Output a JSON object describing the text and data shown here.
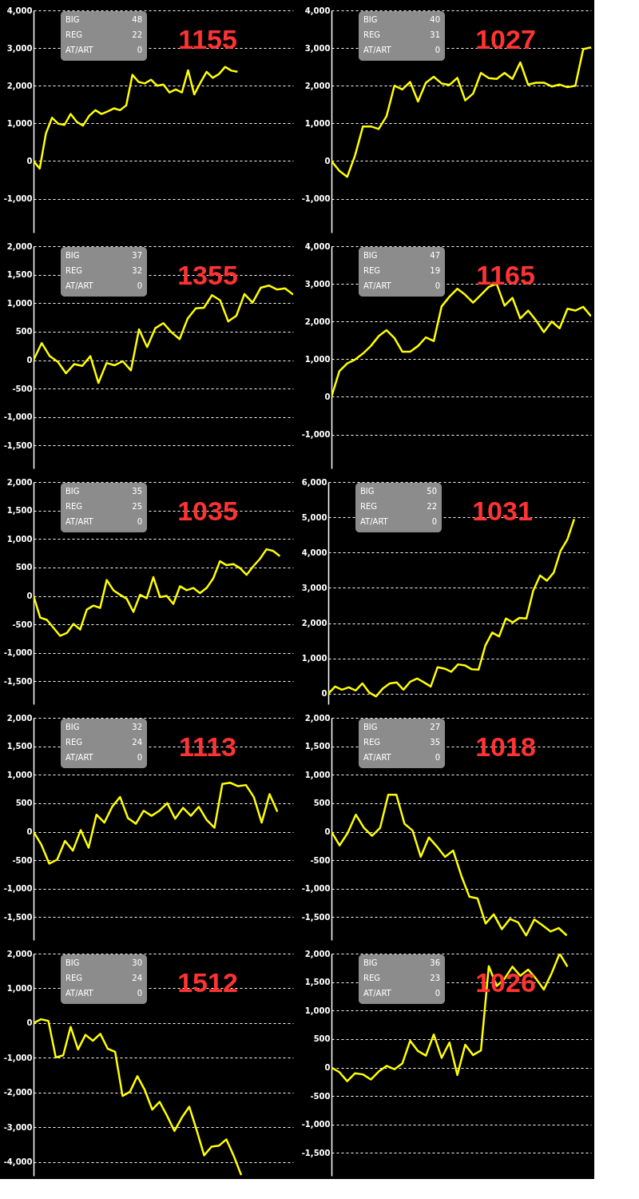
{
  "chart_data": [
    {
      "type": "line",
      "title": "1155",
      "annotations": [
        "BIG",
        "48",
        "REG",
        "22",
        "AT/ART",
        "0"
      ],
      "grid": "y",
      "tick_labels": "y",
      "line_style": "solid",
      "marker": "none",
      "categories": [
        null,
        null,
        null,
        null,
        null,
        null,
        null,
        null,
        null,
        null,
        null,
        null,
        null,
        null,
        null,
        null,
        null,
        null,
        null,
        null,
        null,
        null,
        null,
        null,
        null,
        null,
        null,
        null,
        null,
        null,
        null,
        null,
        null,
        null,
        null,
        null,
        null,
        null,
        null,
        null,
        null,
        null,
        null
      ],
      "ylim": [
        -1900,
        4000
      ],
      "yticks": [
        {
          "value": -1000,
          "label": "-1,000"
        },
        {
          "value": 0,
          "label": "0"
        },
        {
          "value": 1000,
          "label": "1,000"
        },
        {
          "value": 2000,
          "label": "2,000"
        },
        {
          "value": 3000,
          "label": "3,000"
        },
        {
          "value": 4000,
          "label": "4,000"
        }
      ],
      "series": [
        {
          "color": "#ffff00",
          "values": [
            0,
            -200,
            730,
            1150,
            990,
            960,
            1250,
            1040,
            940,
            1200,
            1350,
            1250,
            1320,
            1400,
            1350,
            1480,
            2290,
            2100,
            2060,
            2160,
            2000,
            2030,
            1820,
            1900,
            1820,
            2410,
            1770,
            2080,
            2370,
            2210,
            2310,
            2500,
            2400,
            2370,
            null,
            null,
            null,
            null,
            null,
            null,
            null,
            null,
            null
          ]
        }
      ]
    },
    {
      "type": "line",
      "title": "1027",
      "annotations": [
        "BIG",
        "40",
        "REG",
        "31",
        "AT/ART",
        "0"
      ],
      "grid": "y",
      "tick_labels": "y",
      "line_style": "solid",
      "marker": "none",
      "categories": [
        null,
        null,
        null,
        null,
        null,
        null,
        null,
        null,
        null,
        null,
        null,
        null,
        null,
        null,
        null,
        null,
        null,
        null,
        null,
        null,
        null,
        null,
        null,
        null,
        null,
        null,
        null,
        null,
        null,
        null,
        null,
        null,
        null,
        null
      ],
      "ylim": [
        -1900,
        4000
      ],
      "yticks": [
        {
          "value": -1000,
          "label": "-1,000"
        },
        {
          "value": 0,
          "label": "0"
        },
        {
          "value": 1000,
          "label": "1,000"
        },
        {
          "value": 2000,
          "label": "2,000"
        },
        {
          "value": 3000,
          "label": "3,000"
        },
        {
          "value": 4000,
          "label": "4,000"
        }
      ],
      "series": [
        {
          "color": "#ffff00",
          "values": [
            0,
            -260,
            -420,
            150,
            920,
            920,
            850,
            1190,
            2000,
            1900,
            2100,
            1580,
            2080,
            2240,
            2060,
            2020,
            2210,
            1610,
            1790,
            2340,
            2200,
            2180,
            2340,
            2180,
            2620,
            2030,
            2080,
            2080,
            1980,
            2030,
            1960,
            2000,
            2970,
            3020
          ]
        }
      ]
    },
    {
      "type": "line",
      "title": "1355",
      "annotations": [
        "BIG",
        "37",
        "REG",
        "32",
        "AT/ART",
        "0"
      ],
      "grid": "y",
      "tick_labels": "y",
      "line_style": "solid",
      "marker": "none",
      "categories": [
        null,
        null,
        null,
        null,
        null,
        null,
        null,
        null,
        null,
        null,
        null,
        null,
        null,
        null,
        null,
        null,
        null,
        null,
        null,
        null,
        null,
        null,
        null,
        null,
        null,
        null,
        null,
        null,
        null,
        null,
        null,
        null,
        null
      ],
      "ylim": [
        -1900,
        2000
      ],
      "yticks": [
        {
          "value": -1500,
          "label": "-1,500"
        },
        {
          "value": -1000,
          "label": "-1,000"
        },
        {
          "value": -500,
          "label": "-500"
        },
        {
          "value": 0,
          "label": "0"
        },
        {
          "value": 500,
          "label": "500"
        },
        {
          "value": 1000,
          "label": "1,000"
        },
        {
          "value": 1500,
          "label": "1,500"
        },
        {
          "value": 2000,
          "label": "2,000"
        }
      ],
      "series": [
        {
          "color": "#ffff00",
          "values": [
            0,
            300,
            70,
            -30,
            -230,
            -70,
            -100,
            70,
            -400,
            -50,
            -90,
            -20,
            -180,
            540,
            230,
            560,
            650,
            490,
            370,
            730,
            910,
            920,
            1140,
            1050,
            680,
            780,
            1160,
            1010,
            1270,
            1310,
            1240,
            1260,
            1150
          ]
        }
      ]
    },
    {
      "type": "line",
      "title": "1165",
      "annotations": [
        "BIG",
        "47",
        "REG",
        "19",
        "AT/ART",
        "0"
      ],
      "grid": "y",
      "tick_labels": "y",
      "line_style": "solid",
      "marker": "none",
      "categories": [
        null,
        null,
        null,
        null,
        null,
        null,
        null,
        null,
        null,
        null,
        null,
        null,
        null,
        null,
        null,
        null,
        null,
        null,
        null,
        null,
        null,
        null,
        null,
        null,
        null,
        null,
        null,
        null,
        null,
        null,
        null,
        null,
        null,
        null
      ],
      "ylim": [
        -1900,
        4000
      ],
      "yticks": [
        {
          "value": -1000,
          "label": "-1,000"
        },
        {
          "value": 0,
          "label": "0"
        },
        {
          "value": 1000,
          "label": "1,000"
        },
        {
          "value": 2000,
          "label": "2,000"
        },
        {
          "value": 3000,
          "label": "3,000"
        },
        {
          "value": 4000,
          "label": "4,000"
        }
      ],
      "series": [
        {
          "color": "#ffff00",
          "values": [
            0,
            680,
            890,
            990,
            1150,
            1350,
            1610,
            1770,
            1560,
            1200,
            1200,
            1350,
            1580,
            1480,
            2400,
            2660,
            2870,
            2710,
            2500,
            2710,
            2920,
            3000,
            2420,
            2630,
            2080,
            2290,
            2030,
            1720,
            2000,
            1820,
            2340,
            2290,
            2390,
            2140
          ]
        }
      ]
    },
    {
      "type": "line",
      "title": "1035",
      "annotations": [
        "BIG",
        "35",
        "REG",
        "25",
        "AT/ART",
        "0"
      ],
      "grid": "y",
      "tick_labels": "y",
      "line_style": "solid",
      "marker": "none",
      "categories": [
        null,
        null,
        null,
        null,
        null,
        null,
        null,
        null,
        null,
        null,
        null,
        null,
        null,
        null,
        null,
        null,
        null,
        null,
        null,
        null,
        null,
        null,
        null,
        null,
        null,
        null,
        null,
        null,
        null,
        null,
        null,
        null,
        null,
        null,
        null,
        null,
        null,
        null,
        null,
        null
      ],
      "ylim": [
        -1900,
        2000
      ],
      "yticks": [
        {
          "value": -1500,
          "label": "-1,500"
        },
        {
          "value": -1000,
          "label": "-1,000"
        },
        {
          "value": -500,
          "label": "-500"
        },
        {
          "value": 0,
          "label": "0"
        },
        {
          "value": 500,
          "label": "500"
        },
        {
          "value": 1000,
          "label": "1,000"
        },
        {
          "value": 1500,
          "label": "1,500"
        },
        {
          "value": 2000,
          "label": "2,000"
        }
      ],
      "series": [
        {
          "color": "#ffff00",
          "values": [
            0,
            -380,
            -420,
            -560,
            -700,
            -650,
            -490,
            -590,
            -240,
            -170,
            -210,
            280,
            100,
            20,
            -50,
            -280,
            20,
            -40,
            330,
            -20,
            0,
            -140,
            170,
            100,
            140,
            50,
            140,
            310,
            610,
            540,
            560,
            490,
            370,
            520,
            650,
            820,
            790,
            700,
            null,
            null
          ]
        }
      ]
    },
    {
      "type": "line",
      "title": "1031",
      "annotations": [
        "BIG",
        "50",
        "REG",
        "22",
        "AT/ART",
        "0"
      ],
      "grid": "y",
      "tick_labels": "y",
      "line_style": "solid",
      "marker": "none",
      "categories": [
        null,
        null,
        null,
        null,
        null,
        null,
        null,
        null,
        null,
        null,
        null,
        null,
        null,
        null,
        null,
        null,
        null,
        null,
        null,
        null,
        null,
        null,
        null,
        null,
        null,
        null,
        null,
        null,
        null,
        null,
        null,
        null,
        null,
        null,
        null,
        null,
        null,
        null,
        null
      ],
      "ylim": [
        -300,
        6000
      ],
      "yticks": [
        {
          "value": 0,
          "label": "0"
        },
        {
          "value": 1000,
          "label": "1,000"
        },
        {
          "value": 2000,
          "label": "2,000"
        },
        {
          "value": 3000,
          "label": "3,000"
        },
        {
          "value": 4000,
          "label": "4,000"
        },
        {
          "value": 5000,
          "label": "5,000"
        },
        {
          "value": 6000,
          "label": "6,000"
        }
      ],
      "series": [
        {
          "color": "#ffff00",
          "values": [
            0,
            200,
            110,
            180,
            90,
            290,
            30,
            -80,
            150,
            290,
            320,
            110,
            340,
            430,
            320,
            200,
            750,
            710,
            620,
            830,
            800,
            690,
            680,
            1370,
            1730,
            1620,
            2130,
            2020,
            2150,
            2130,
            2920,
            3350,
            3200,
            3430,
            4050,
            4370,
            4950,
            null,
            null
          ]
        }
      ]
    },
    {
      "type": "line",
      "title": "1113",
      "annotations": [
        "BIG",
        "32",
        "REG",
        "24",
        "AT/ART",
        "0"
      ],
      "grid": "y",
      "tick_labels": "y",
      "line_style": "solid",
      "marker": "none",
      "categories": [
        null,
        null,
        null,
        null,
        null,
        null,
        null,
        null,
        null,
        null,
        null,
        null,
        null,
        null,
        null,
        null,
        null,
        null,
        null,
        null,
        null,
        null,
        null,
        null,
        null,
        null,
        null,
        null,
        null,
        null,
        null,
        null,
        null,
        null
      ],
      "ylim": [
        -1900,
        2000
      ],
      "yticks": [
        {
          "value": -1500,
          "label": "-1,500"
        },
        {
          "value": -1000,
          "label": "-1,000"
        },
        {
          "value": -500,
          "label": "-500"
        },
        {
          "value": 0,
          "label": "0"
        },
        {
          "value": 500,
          "label": "500"
        },
        {
          "value": 1000,
          "label": "1,000"
        },
        {
          "value": 1500,
          "label": "1,500"
        },
        {
          "value": 2000,
          "label": "2,000"
        }
      ],
      "series": [
        {
          "color": "#ffff00",
          "values": [
            0,
            -230,
            -560,
            -490,
            -160,
            -330,
            30,
            -280,
            300,
            160,
            440,
            610,
            240,
            140,
            370,
            280,
            370,
            500,
            230,
            420,
            280,
            440,
            210,
            70,
            840,
            860,
            800,
            820,
            610,
            160,
            660,
            350,
            null,
            null
          ]
        }
      ]
    },
    {
      "type": "line",
      "title": "1018",
      "annotations": [
        "BIG",
        "27",
        "REG",
        "35",
        "AT/ART",
        "0"
      ],
      "grid": "y",
      "tick_labels": "y",
      "line_style": "solid",
      "marker": "none",
      "categories": [
        null,
        null,
        null,
        null,
        null,
        null,
        null,
        null,
        null,
        null,
        null,
        null,
        null,
        null,
        null,
        null,
        null,
        null,
        null,
        null,
        null,
        null,
        null,
        null,
        null,
        null,
        null,
        null,
        null,
        null,
        null,
        null,
        null
      ],
      "ylim": [
        -1900,
        2000
      ],
      "yticks": [
        {
          "value": -1500,
          "label": "-1,500"
        },
        {
          "value": -1000,
          "label": "-1,000"
        },
        {
          "value": -500,
          "label": "-500"
        },
        {
          "value": 0,
          "label": "0"
        },
        {
          "value": 500,
          "label": "500"
        },
        {
          "value": 1000,
          "label": "1,000"
        },
        {
          "value": 1500,
          "label": "1,500"
        },
        {
          "value": 2000,
          "label": "2,000"
        }
      ],
      "series": [
        {
          "color": "#ffff00",
          "values": [
            0,
            -240,
            -20,
            300,
            70,
            -70,
            70,
            650,
            650,
            140,
            20,
            -440,
            -100,
            -260,
            -440,
            -330,
            -770,
            -1140,
            -1170,
            -1610,
            -1450,
            -1710,
            -1530,
            -1590,
            -1820,
            -1540,
            -1640,
            -1750,
            -1690,
            -1820,
            null,
            null,
            null
          ]
        }
      ]
    },
    {
      "type": "line",
      "title": "1512",
      "annotations": [
        "BIG",
        "30",
        "REG",
        "24",
        "AT/ART",
        "0"
      ],
      "grid": "y",
      "tick_labels": "y",
      "line_style": "solid",
      "marker": "none",
      "categories": [
        null,
        null,
        null,
        null,
        null,
        null,
        null,
        null,
        null,
        null,
        null,
        null,
        null,
        null,
        null,
        null,
        null,
        null,
        null,
        null,
        null,
        null,
        null,
        null,
        null,
        null,
        null,
        null,
        null,
        null,
        null,
        null,
        null,
        null,
        null,
        null
      ],
      "ylim": [
        -4400,
        2000
      ],
      "yticks": [
        {
          "value": -4000,
          "label": "-4,000"
        },
        {
          "value": -3000,
          "label": "-3,000"
        },
        {
          "value": -2000,
          "label": "-2,000"
        },
        {
          "value": -1000,
          "label": "-1,000"
        },
        {
          "value": 0,
          "label": "0"
        },
        {
          "value": 1000,
          "label": "1,000"
        },
        {
          "value": 2000,
          "label": "2,000"
        }
      ],
      "series": [
        {
          "color": "#ffff00",
          "values": [
            0,
            110,
            60,
            -990,
            -930,
            -110,
            -760,
            -340,
            -510,
            -310,
            -740,
            -830,
            -2100,
            -1980,
            -1530,
            -1930,
            -2490,
            -2270,
            -2670,
            -3110,
            -2720,
            -2410,
            -3090,
            -3810,
            -3560,
            -3530,
            -3350,
            -3830,
            -4380,
            null,
            null,
            null,
            null,
            null,
            null,
            null
          ]
        }
      ]
    },
    {
      "type": "line",
      "title": "1026",
      "annotations": [
        "BIG",
        "36",
        "REG",
        "23",
        "AT/ART",
        "0"
      ],
      "grid": "y",
      "tick_labels": "y",
      "line_style": "solid",
      "marker": "none",
      "categories": [
        null,
        null,
        null,
        null,
        null,
        null,
        null,
        null,
        null,
        null,
        null,
        null,
        null,
        null,
        null,
        null,
        null,
        null,
        null,
        null,
        null,
        null,
        null,
        null,
        null,
        null,
        null,
        null,
        null,
        null,
        null,
        null,
        null,
        null
      ],
      "ylim": [
        -1900,
        2000
      ],
      "yticks": [
        {
          "value": -1500,
          "label": "-1,500"
        },
        {
          "value": -1000,
          "label": "-1,000"
        },
        {
          "value": -500,
          "label": "-500"
        },
        {
          "value": 0,
          "label": "0"
        },
        {
          "value": 500,
          "label": "500"
        },
        {
          "value": 1000,
          "label": "1,000"
        },
        {
          "value": 1500,
          "label": "1,500"
        },
        {
          "value": 2000,
          "label": "2,000"
        }
      ],
      "series": [
        {
          "color": "#ffff00",
          "values": [
            0,
            -80,
            -240,
            -100,
            -120,
            -210,
            -70,
            30,
            -30,
            70,
            470,
            290,
            210,
            580,
            170,
            440,
            -130,
            400,
            220,
            300,
            1780,
            1430,
            1560,
            1770,
            1610,
            1720,
            1560,
            1370,
            1660,
            2000,
            1770,
            null,
            null,
            null
          ]
        }
      ]
    }
  ]
}
